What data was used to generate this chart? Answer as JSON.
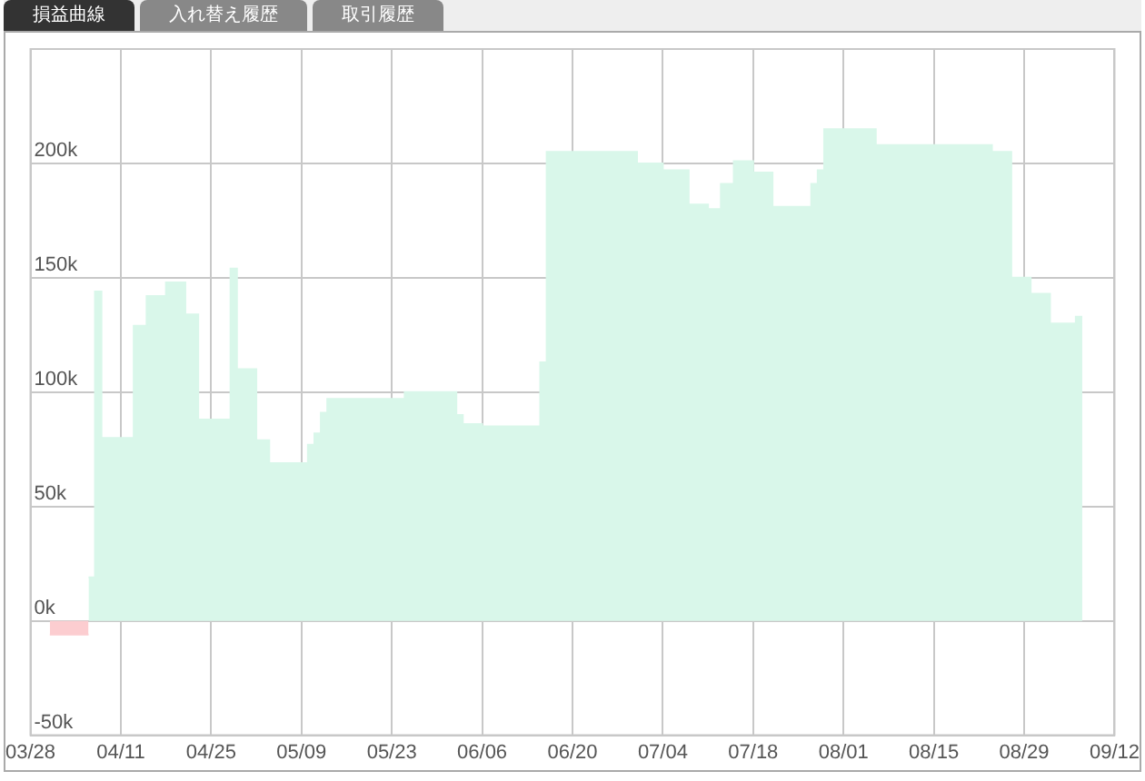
{
  "chart_data": {
    "type": "area",
    "title": "損益曲線",
    "annotations": [
      "入れ替え履歴",
      "取引履歴"
    ],
    "series": [
      {
        "color": "#fccdd0",
        "x": [
          "--03-31",
          "--04-06"
        ],
        "values": [
          -6000,
          -6000
        ]
      },
      {
        "color": "#d9f7ea",
        "x": [
          "--04-06",
          "--04-07",
          "--04-07",
          "--04-08",
          "--04-08",
          "--04-13",
          "--04-13",
          "--04-15",
          "--04-15",
          "--04-18",
          "--04-18",
          "--04-21",
          "--04-21",
          "--04-23",
          "--04-23",
          "--04-28",
          "--04-28",
          "--04-29",
          "--04-29",
          "--05-02",
          "--05-02",
          "--05-04",
          "--05-04",
          "--05-10",
          "--05-10",
          "--05-11",
          "--05-11",
          "--05-12",
          "--05-12",
          "--05-13",
          "--05-13",
          "--05-25",
          "--05-25",
          "--06-02",
          "--06-02",
          "--06-03",
          "--06-03",
          "--06-06",
          "--06-06",
          "--06-15",
          "--06-15",
          "--06-16",
          "--06-16",
          "--06-30",
          "--06-30",
          "--07-04",
          "--07-04",
          "--07-08",
          "--07-08",
          "--07-11",
          "--07-11",
          "--07-13",
          "--07-13",
          "--07-15",
          "--07-15",
          "--07-18",
          "--07-18",
          "--07-21",
          "--07-21",
          "--07-27",
          "--07-27",
          "--07-28",
          "--07-28",
          "--07-29",
          "--07-29",
          "--08-06",
          "--08-06",
          "--08-24",
          "--08-24",
          "--08-27",
          "--08-27",
          "--08-30",
          "--08-30",
          "--09-02",
          "--09-02",
          "--09-06",
          "--09-06",
          "--09-07"
        ],
        "values": [
          19000,
          19000,
          144000,
          144000,
          80000,
          80000,
          129000,
          129000,
          142000,
          142000,
          148000,
          148000,
          134000,
          134000,
          88000,
          88000,
          154000,
          154000,
          110000,
          110000,
          79000,
          79000,
          69000,
          69000,
          77000,
          77000,
          82000,
          82000,
          91000,
          91000,
          97000,
          97000,
          100000,
          100000,
          90000,
          90000,
          86000,
          86000,
          85000,
          85000,
          113000,
          113000,
          205000,
          205000,
          200000,
          200000,
          197000,
          197000,
          182000,
          182000,
          180000,
          180000,
          191000,
          191000,
          201000,
          201000,
          196000,
          196000,
          181000,
          181000,
          191000,
          191000,
          197000,
          197000,
          215000,
          215000,
          208000,
          208000,
          205000,
          205000,
          150000,
          150000,
          143000,
          143000,
          130000,
          130000,
          133000,
          133000
        ]
      }
    ],
    "xlim": [
      "--03-28",
      "--09-12"
    ],
    "xticks": [
      {
        "value": "--03-28",
        "label": "03/28"
      },
      {
        "value": "--04-11",
        "label": "04/11"
      },
      {
        "value": "--04-25",
        "label": "04/25"
      },
      {
        "value": "--05-09",
        "label": "05/09"
      },
      {
        "value": "--05-23",
        "label": "05/23"
      },
      {
        "value": "--06-06",
        "label": "06/06"
      },
      {
        "value": "--06-20",
        "label": "06/20"
      },
      {
        "value": "--07-04",
        "label": "07/04"
      },
      {
        "value": "--07-18",
        "label": "07/18"
      },
      {
        "value": "--08-01",
        "label": "08/01"
      },
      {
        "value": "--08-15",
        "label": "08/15"
      },
      {
        "value": "--08-29",
        "label": "08/29"
      },
      {
        "value": "--09-12",
        "label": "09/12"
      }
    ],
    "ylim": [
      -50000,
      250000
    ],
    "yticks": [
      {
        "value": -50000,
        "label": "-50k"
      },
      {
        "value": 0,
        "label": "0k"
      },
      {
        "value": 50000,
        "label": "50k"
      },
      {
        "value": 100000,
        "label": "100k"
      },
      {
        "value": 150000,
        "label": "150k"
      },
      {
        "value": 200000,
        "label": "200k"
      }
    ],
    "grid": true,
    "legend": false,
    "marker": "none"
  }
}
